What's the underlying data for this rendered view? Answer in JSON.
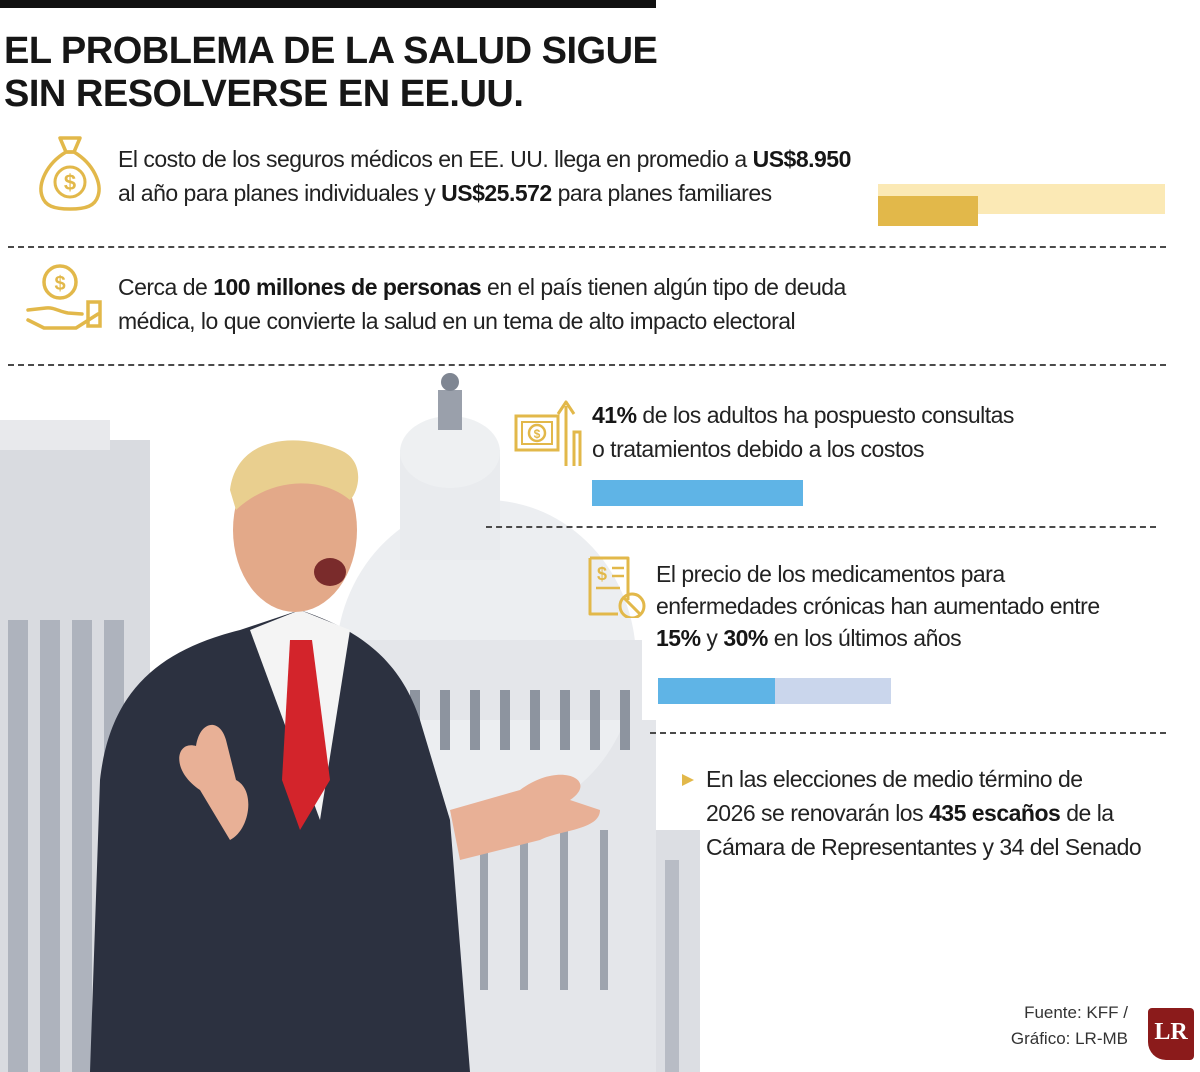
{
  "title": {
    "line1": "EL PROBLEMA DE LA SALUD SIGUE",
    "line2": "SIN RESOLVERSE EN EE.UU."
  },
  "colors": {
    "gold": "#e2b84a",
    "light_gold": "#fbe9b5",
    "blue": "#5fb4e6",
    "light_blue": "#cad6ec",
    "logo_red": "#8b1b1b"
  },
  "items": [
    {
      "icon": "money-bag-icon",
      "line1": "El costo de los seguros médicos  en EE. UU. llega en promedio a ",
      "line1_bold": "US$8.950",
      "line2_pre": "al año para planes individuales y ",
      "line2_bold": "US$25.572",
      "line2_post": " para planes familiares",
      "bar": {
        "value": 8950,
        "total": 25572
      }
    },
    {
      "icon": "hand-coin-icon",
      "line1_pre": "Cerca de ",
      "line1_bold": "100 millones de personas",
      "line1_post": " en el país tienen algún tipo de deuda",
      "line2": "médica, lo que convierte la salud en un tema de alto impacto electoral"
    },
    {
      "icon": "cash-rising-icon",
      "line1_bold": "41%",
      "line1_post": " de los adultos ha pospuesto consultas",
      "line2": "o tratamientos debido a los costos",
      "bar": {
        "percent": 41
      }
    },
    {
      "icon": "prescription-icon",
      "line1": "El precio de los medicamentos para",
      "line2": "enfermedades crónicas han aumentado entre",
      "line3_bold1": "15%",
      "line3_mid": " y ",
      "line3_bold2": "30%",
      "line3_post": " en los últimos años",
      "bar": {
        "low_percent": 15,
        "high_percent": 30
      }
    },
    {
      "icon": "triangle-bullet-icon",
      "line1": "En las elecciones de medio término de",
      "line2_pre": "2026 se renovarán los ",
      "line2_bold": "435 escaños",
      "line2_post": " de la",
      "line3": "Cámara de Representantes y 34 del Senado"
    }
  ],
  "source": {
    "line1": "Fuente: KFF /",
    "line2": "Gráfico: LR-MB"
  },
  "logo": "LR"
}
